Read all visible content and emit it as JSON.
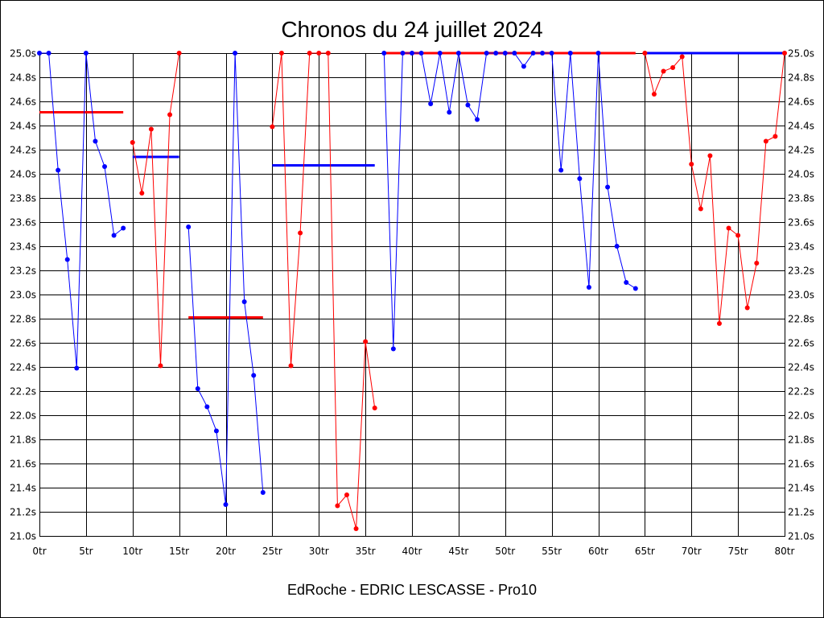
{
  "chart_data": {
    "type": "line",
    "title": "Chronos du 24 juillet 2024",
    "caption": "EdRoche - EDRIC LESCASSE - Pro10",
    "xlim": [
      0,
      80
    ],
    "ylim": [
      21.0,
      25.0
    ],
    "grid": true,
    "x_ticks": {
      "values": [
        0,
        5,
        10,
        15,
        20,
        25,
        30,
        35,
        40,
        45,
        50,
        55,
        60,
        65,
        70,
        75,
        80
      ],
      "labels": [
        "0tr",
        "5tr",
        "10tr",
        "15tr",
        "20tr",
        "25tr",
        "30tr",
        "35tr",
        "40tr",
        "45tr",
        "50tr",
        "55tr",
        "60tr",
        "65tr",
        "70tr",
        "75tr",
        "80tr"
      ]
    },
    "y_ticks": {
      "values": [
        21.0,
        21.2,
        21.4,
        21.6,
        21.8,
        22.0,
        22.2,
        22.4,
        22.6,
        22.8,
        23.0,
        23.2,
        23.4,
        23.6,
        23.8,
        24.0,
        24.2,
        24.4,
        24.6,
        24.8,
        25.0
      ],
      "labels": [
        "21.0s",
        "21.2s",
        "21.4s",
        "21.6s",
        "21.8s",
        "22.0s",
        "22.2s",
        "22.4s",
        "22.6s",
        "22.8s",
        "23.0s",
        "23.2s",
        "23.4s",
        "23.6s",
        "23.8s",
        "24.0s",
        "24.2s",
        "24.4s",
        "24.6s",
        "24.8s",
        "25.0s"
      ]
    },
    "series": [
      {
        "color": "#0000ff",
        "x": [
          0,
          1,
          2,
          3,
          4,
          5,
          6,
          7,
          8,
          9
        ],
        "y": [
          25.0,
          25.0,
          24.03,
          23.29,
          22.39,
          25.0,
          24.27,
          24.06,
          23.49,
          23.55
        ]
      },
      {
        "color": "#ff0000",
        "x": [
          10,
          11,
          12,
          13,
          14,
          15
        ],
        "y": [
          24.26,
          23.84,
          24.37,
          22.41,
          24.49,
          25.0
        ]
      },
      {
        "color": "#0000ff",
        "x": [
          16,
          17,
          18,
          19,
          20,
          21,
          22,
          23,
          24
        ],
        "y": [
          23.56,
          22.22,
          22.07,
          21.87,
          21.26,
          25.0,
          22.94,
          22.33,
          21.36
        ]
      },
      {
        "color": "#ff0000",
        "x": [
          25,
          26,
          27,
          28,
          29,
          30,
          31,
          32,
          33,
          34,
          35,
          36
        ],
        "y": [
          24.39,
          25.0,
          22.41,
          23.51,
          25.0,
          25.0,
          25.0,
          21.25,
          21.34,
          21.06,
          22.61,
          22.06
        ]
      },
      {
        "color": "#0000ff",
        "x": [
          37,
          38,
          39,
          40,
          41,
          42,
          43,
          44,
          45,
          46,
          47,
          48,
          49,
          50,
          51,
          52,
          53,
          54,
          55,
          56,
          57,
          58,
          59,
          60,
          61,
          62,
          63,
          64
        ],
        "y": [
          25.0,
          22.55,
          25.0,
          25.0,
          25.0,
          24.58,
          25.0,
          24.51,
          25.0,
          24.57,
          24.45,
          25.0,
          25.0,
          25.0,
          25.0,
          24.89,
          25.0,
          25.0,
          25.0,
          24.03,
          25.0,
          23.96,
          23.06,
          25.0,
          23.89,
          23.4,
          23.1,
          23.05
        ]
      },
      {
        "color": "#ff0000",
        "x": [
          65,
          66,
          67,
          68,
          69,
          70,
          71,
          72,
          73,
          74,
          75,
          76,
          77,
          78,
          79,
          80
        ],
        "y": [
          25.0,
          24.66,
          24.85,
          24.88,
          24.97,
          24.08,
          23.71,
          24.15,
          22.76,
          23.55,
          23.49,
          22.89,
          23.26,
          24.27,
          24.31,
          25.0
        ]
      }
    ],
    "reference_lines": [
      {
        "color": "#ff0000",
        "x_range": [
          0,
          9
        ],
        "y": 24.51
      },
      {
        "color": "#0000ff",
        "x_range": [
          10,
          15
        ],
        "y": 24.14
      },
      {
        "color": "#ff0000",
        "x_range": [
          16,
          24
        ],
        "y": 22.81
      },
      {
        "color": "#0000ff",
        "x_range": [
          25,
          36
        ],
        "y": 24.07
      },
      {
        "color": "#ff0000",
        "x_range": [
          37,
          64
        ],
        "y": 25.0
      },
      {
        "color": "#0000ff",
        "x_range": [
          65,
          80
        ],
        "y": 25.0
      }
    ]
  }
}
